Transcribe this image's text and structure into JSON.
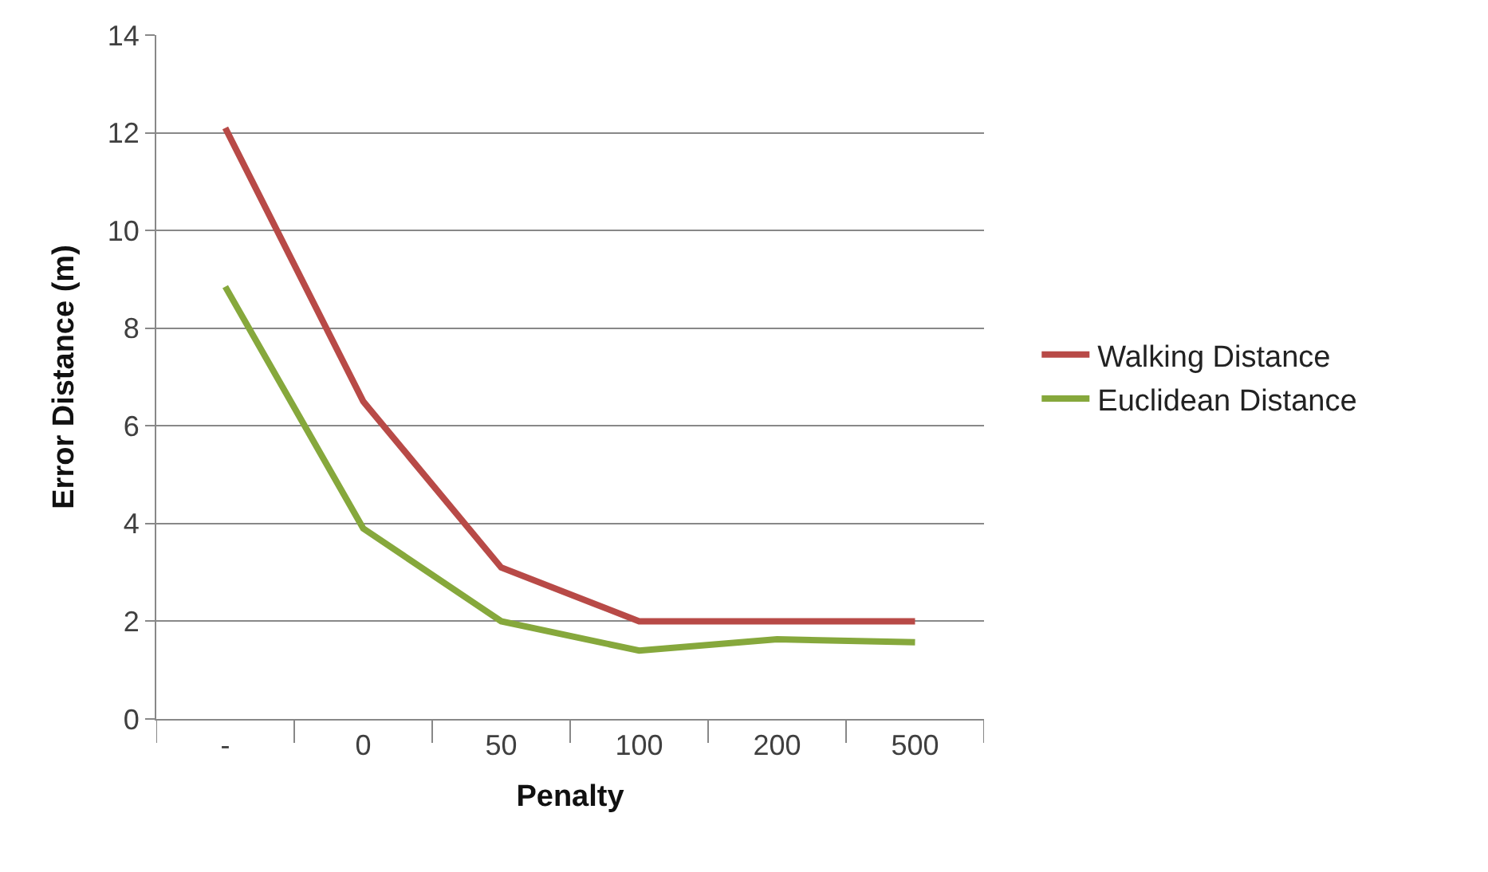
{
  "chart_data": {
    "type": "line",
    "xlabel": "Penalty",
    "ylabel": "Error Distance (m)",
    "categories": [
      "-",
      "0",
      "50",
      "100",
      "200",
      "500"
    ],
    "series": [
      {
        "name": "Walking Distance",
        "color": "#b84a47",
        "values": [
          12.1,
          6.5,
          3.1,
          2.0,
          2.0,
          2.0
        ]
      },
      {
        "name": "Euclidean Distance",
        "color": "#86a83c",
        "values": [
          8.85,
          3.9,
          2.0,
          1.4,
          1.63,
          1.57
        ]
      }
    ],
    "ylim": [
      0,
      14
    ],
    "yticks": [
      0,
      2,
      4,
      6,
      8,
      10,
      12,
      14
    ],
    "grid": "y",
    "legend": "right",
    "marker": "none",
    "line_style": "solid"
  }
}
